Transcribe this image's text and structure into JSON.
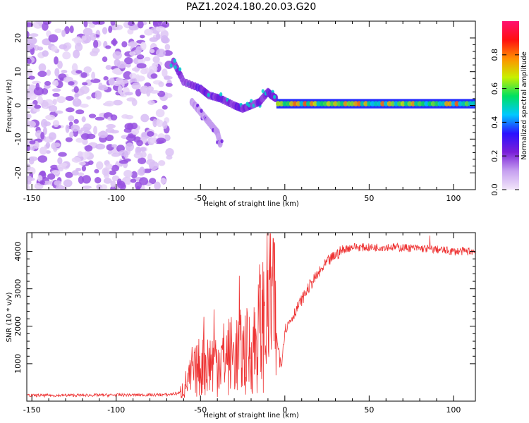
{
  "figure": {
    "title": "PAZ1.2024.180.20.03.G20"
  },
  "chart_data": [
    {
      "type": "heatmap",
      "xlabel": "Height of straight line (km)",
      "ylabel": "Frequency (Hz)",
      "xlim": [
        -153,
        113
      ],
      "ylim": [
        -25,
        25
      ],
      "x_ticks": [
        -150,
        -100,
        -50,
        0,
        50,
        100
      ],
      "y_ticks": [
        -20,
        -10,
        0,
        10,
        20
      ],
      "colorbar": {
        "label": "Normalized spectral amplitude",
        "range": [
          0,
          1
        ],
        "ticks": [
          0.0,
          0.2,
          0.4,
          0.6,
          0.8
        ],
        "colormap": [
          "#f2e6fa",
          "#c6a0f0",
          "#7a1fd8",
          "#2a10ff",
          "#00c8ff",
          "#00e060",
          "#c8f000",
          "#ff9000",
          "#ff1010",
          "#ff1070"
        ]
      },
      "features": [
        {
          "name": "noise",
          "x_range": [
            -153,
            -68
          ],
          "y_range": [
            -25,
            25
          ],
          "amplitude": 0.1
        },
        {
          "name": "tail",
          "points": [
            [
              -66,
              13
            ],
            [
              -60,
              7
            ],
            [
              -50,
              5
            ],
            [
              -45,
              3
            ],
            [
              -38,
              2
            ],
            [
              -30,
              0
            ],
            [
              -25,
              -1
            ],
            [
              -20,
              0
            ],
            [
              -15,
              1
            ],
            [
              -10,
              4
            ],
            [
              -8,
              3
            ],
            [
              -5,
              2
            ]
          ],
          "amplitude": 0.3
        },
        {
          "name": "lower-branch",
          "points": [
            [
              -55,
              1
            ],
            [
              -50,
              -2
            ],
            [
              -45,
              -5
            ],
            [
              -40,
              -8
            ],
            [
              -38,
              -12
            ]
          ],
          "amplitude": 0.15
        },
        {
          "name": "carrier",
          "x_range": [
            -5,
            113
          ],
          "y": 0.5,
          "amplitude": 0.75
        }
      ]
    },
    {
      "type": "line",
      "xlabel": "Height of straight line (km)",
      "ylabel": "SNR (10 * v/v)",
      "xlim": [
        -153,
        113
      ],
      "ylim": [
        0,
        4500
      ],
      "x_ticks": [
        -150,
        -100,
        -50,
        0,
        50,
        100
      ],
      "y_ticks": [
        1000,
        2000,
        3000,
        4000
      ],
      "color": "#ee3333",
      "envelope": {
        "x": [
          -153,
          -70,
          -62,
          -58,
          -50,
          -40,
          -30,
          -20,
          -15,
          -10,
          -8,
          -5,
          -2,
          0,
          5,
          10,
          15,
          20,
          25,
          30,
          35,
          40,
          50,
          60,
          70,
          80,
          90,
          100,
          113
        ],
        "y": [
          150,
          170,
          220,
          500,
          950,
          1100,
          1250,
          1350,
          1800,
          2500,
          3000,
          1700,
          1000,
          1900,
          2300,
          2700,
          3100,
          3400,
          3700,
          3900,
          4050,
          4120,
          4100,
          4120,
          4100,
          4080,
          4050,
          4000,
          4000
        ]
      },
      "spikes": [
        {
          "x": -55,
          "y": 1450
        },
        {
          "x": -48,
          "y": 2250
        },
        {
          "x": -42,
          "y": 2450
        },
        {
          "x": -27,
          "y": 3350
        },
        {
          "x": -15,
          "y": 3650
        },
        {
          "x": -10,
          "y": 3500
        },
        {
          "x": -6,
          "y": 4200
        },
        {
          "x": -3,
          "y": 900
        },
        {
          "x": 86,
          "y": 4420
        }
      ]
    }
  ]
}
